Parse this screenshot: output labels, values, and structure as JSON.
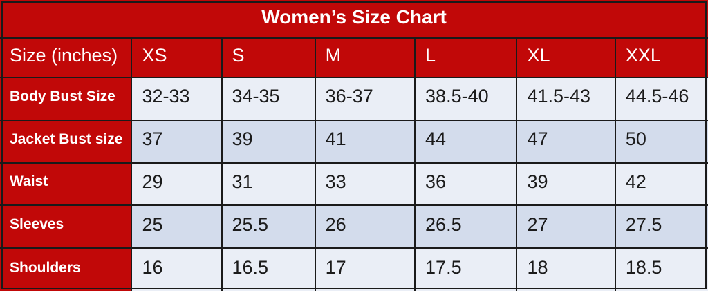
{
  "title": "Women’s Size Chart",
  "colors": {
    "red": "#c10808",
    "row_light": "#eaeef6",
    "row_dark": "#d3dcec",
    "grid_border": "#1a1a1a",
    "header_text": "#ffffff",
    "data_text": "#1b1b1b"
  },
  "chart_data": {
    "type": "table",
    "title": "Women’s Size Chart",
    "header": [
      "Size (inches)",
      "XS",
      "S",
      "M",
      "L",
      "XL",
      "XXL"
    ],
    "rows": [
      {
        "label": "Body Bust Size",
        "values": [
          "32-33",
          "34-35",
          "36-37",
          "38.5-40",
          "41.5-43",
          "44.5-46"
        ]
      },
      {
        "label": "Jacket Bust size",
        "values": [
          "37",
          "39",
          "41",
          "44",
          "47",
          "50"
        ]
      },
      {
        "label": "Waist",
        "values": [
          "29",
          "31",
          "33",
          "36",
          "39",
          "42"
        ]
      },
      {
        "label": "Sleeves",
        "values": [
          "25",
          "25.5",
          "26",
          "26.5",
          "27",
          "27.5"
        ]
      },
      {
        "label": "Shoulders",
        "values": [
          "16",
          "16.5",
          "17",
          "17.5",
          "18",
          "18.5"
        ]
      }
    ]
  }
}
